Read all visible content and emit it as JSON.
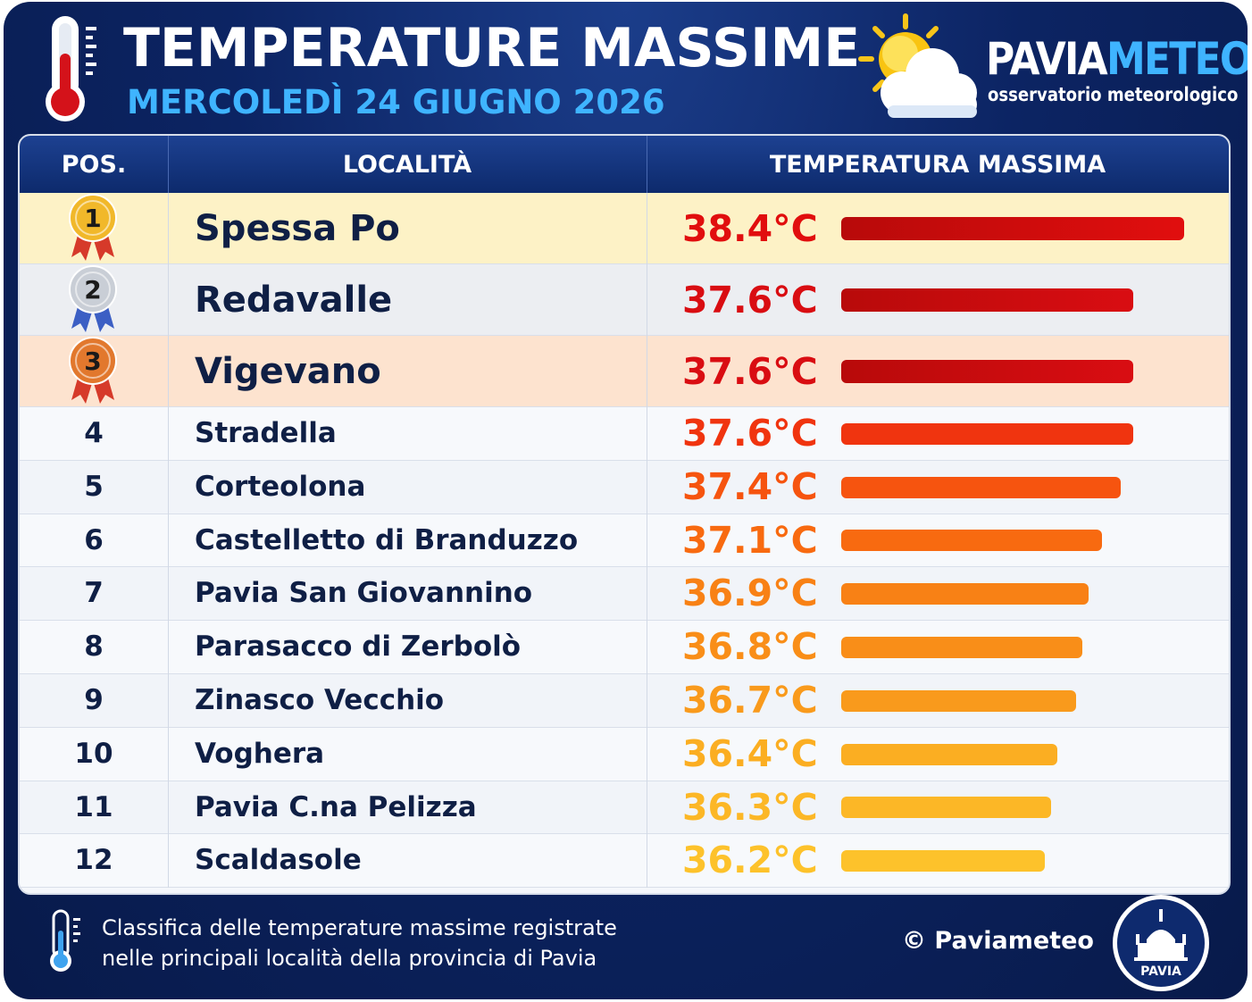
{
  "header": {
    "title": "TEMPERATURE MASSIME",
    "subtitle": "MERCOLEDÌ 24 GIUGNO 2026",
    "brand_part1": "PAVIA",
    "brand_part2": "METEO",
    "brand_sub": "osservatorio meteorologico"
  },
  "table": {
    "col_pos": "POS.",
    "col_location": "LOCALITÀ",
    "col_temp": "TEMPERATURA MASSIMA"
  },
  "chart_data": {
    "type": "bar",
    "orientation": "horizontal",
    "unit": "°C",
    "categories": [
      "Spessa Po",
      "Redavalle",
      "Vigevano",
      "Stradella",
      "Corteolona",
      "Castelletto di Branduzzo",
      "Pavia San Giovannino",
      "Parasacco di Zerbolò",
      "Zinasco Vecchio",
      "Voghera",
      "Pavia C.na Pelizza",
      "Scaldasole"
    ],
    "positions": [
      "1",
      "2",
      "3",
      "4",
      "5",
      "6",
      "7",
      "8",
      "9",
      "10",
      "11",
      "12"
    ],
    "values": [
      38.4,
      37.6,
      37.6,
      37.6,
      37.4,
      37.1,
      36.9,
      36.8,
      36.7,
      36.4,
      36.3,
      36.2
    ],
    "labels": [
      "38.4°C",
      "37.6°C",
      "37.6°C",
      "37.6°C",
      "37.4°C",
      "37.1°C",
      "36.9°C",
      "36.8°C",
      "36.7°C",
      "36.4°C",
      "36.3°C",
      "36.2°C"
    ],
    "colors": [
      "#e10e0e",
      "#d90d12",
      "#d90d12",
      "#f0340f",
      "#f6540f",
      "#f86a10",
      "#f88115",
      "#f98e18",
      "#f99a1c",
      "#fbae22",
      "#fcb726",
      "#fdc22b"
    ],
    "medal_colors": [
      "#f1b82a",
      "#c9ced6",
      "#e2782d"
    ],
    "row_highlights": [
      "#fdf2c6",
      "#eceef2",
      "#fde3cf"
    ]
  },
  "footer": {
    "line1": "Classifica delle temperature massime registrate",
    "line2": "nelle principali località della provincia di Pavia",
    "copyright": "© Paviameteo",
    "seal_text": "PAVIA"
  }
}
